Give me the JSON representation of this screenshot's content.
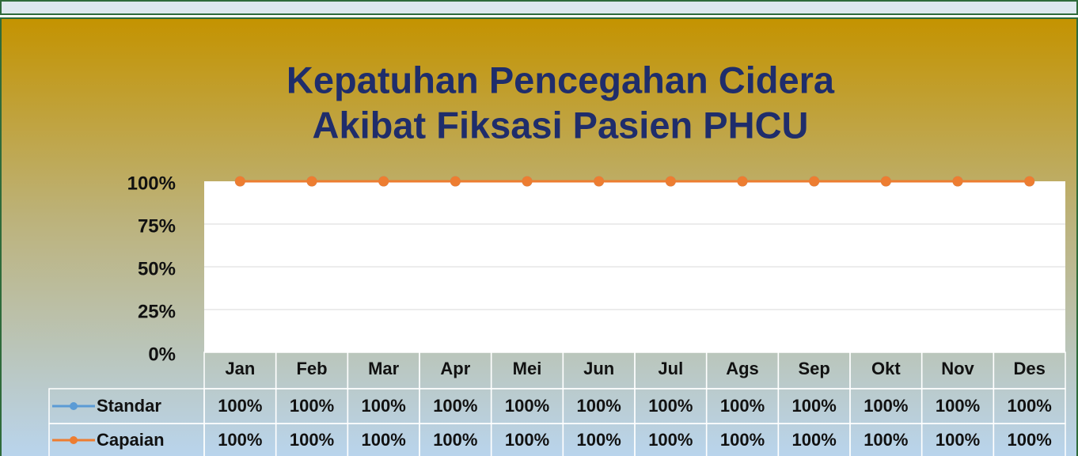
{
  "chart_data": {
    "type": "line",
    "title": "Kepatuhan Pencegahan Cidera",
    "subtitle": "Akibat Fiksasi Pasien PHCU",
    "categories": [
      "Jan",
      "Feb",
      "Mar",
      "Apr",
      "Mei",
      "Jun",
      "Jul",
      "Ags",
      "Sep",
      "Okt",
      "Nov",
      "Des"
    ],
    "series": [
      {
        "name": "Standar",
        "color": "#5b9bd5",
        "values": [
          100,
          100,
          100,
          100,
          100,
          100,
          100,
          100,
          100,
          100,
          100,
          100
        ],
        "value_labels": [
          "100%",
          "100%",
          "100%",
          "100%",
          "100%",
          "100%",
          "100%",
          "100%",
          "100%",
          "100%",
          "100%",
          "100%"
        ]
      },
      {
        "name": "Capaian",
        "color": "#ed7d31",
        "values": [
          100,
          100,
          100,
          100,
          100,
          100,
          100,
          100,
          100,
          100,
          100,
          100
        ],
        "value_labels": [
          "100%",
          "100%",
          "100%",
          "100%",
          "100%",
          "100%",
          "100%",
          "100%",
          "100%",
          "100%",
          "100%",
          "100%"
        ]
      }
    ],
    "ylim": [
      0,
      100
    ],
    "yticks": [
      {
        "value": 0,
        "label": "0%"
      },
      {
        "value": 25,
        "label": "25%"
      },
      {
        "value": 50,
        "label": "50%"
      },
      {
        "value": 75,
        "label": "75%"
      },
      {
        "value": 100,
        "label": "100%"
      }
    ],
    "grid": true
  }
}
